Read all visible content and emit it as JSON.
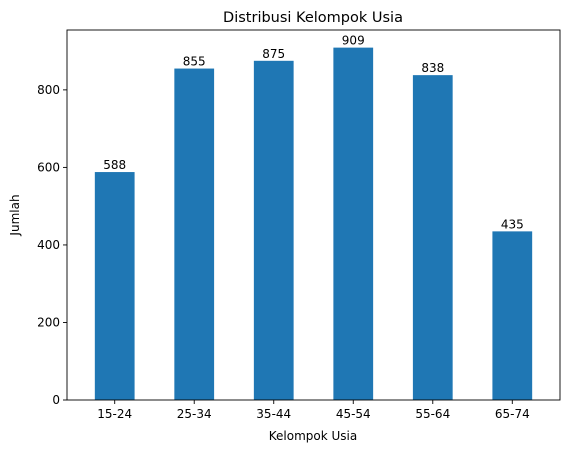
{
  "chart_data": {
    "type": "bar",
    "title": "Distribusi Kelompok Usia",
    "xlabel": "Kelompok Usia",
    "ylabel": "Jumlah",
    "categories": [
      "15-24",
      "25-34",
      "35-44",
      "45-54",
      "55-64",
      "65-74"
    ],
    "values": [
      588,
      855,
      875,
      909,
      838,
      435
    ],
    "data_labels": [
      "588",
      "855",
      "875",
      "909",
      "838",
      "435"
    ],
    "yticks": [
      0,
      200,
      400,
      600,
      800
    ],
    "ylim": [
      0,
      954.45
    ],
    "grid": false,
    "legend": "none",
    "bar_color": "#1f77b4"
  }
}
